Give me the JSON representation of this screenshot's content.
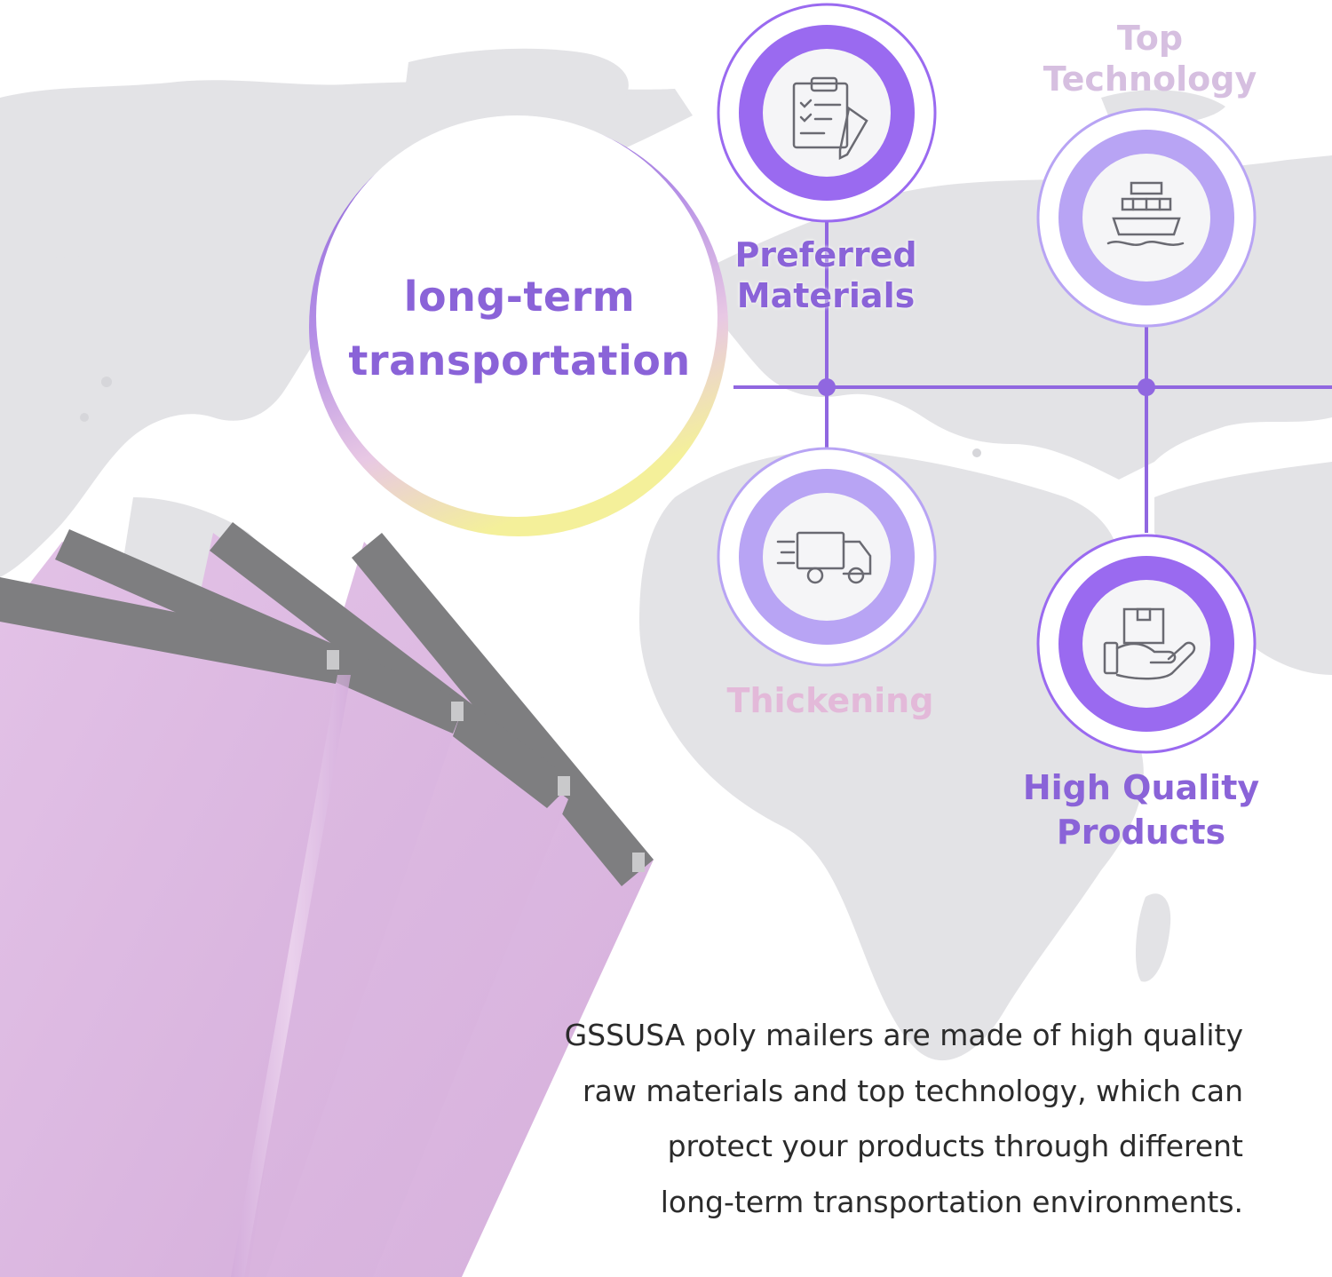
{
  "hero": {
    "line1": "long-term",
    "line2": "transportation"
  },
  "features": {
    "preferred": {
      "line1": "Preferred",
      "line2": "Materials",
      "icon": "clipboard-checklist-icon"
    },
    "top": {
      "line1": "Top",
      "line2": "Technology",
      "icon": "cargo-ship-icon"
    },
    "thickening": {
      "label": "Thickening",
      "icon": "delivery-truck-icon"
    },
    "high_quality": {
      "line1": "High Quality",
      "line2": "Products",
      "icon": "hand-package-icon"
    }
  },
  "description": {
    "line1": "GSSUSA poly mailers are made of high quality",
    "line2": "raw materials and top technology, which can",
    "line3": "protect your products through different",
    "line4": "long-term transportation environments."
  },
  "colors": {
    "accent": "#8a63d8",
    "ring_dark": "#9a6af0",
    "ring_light": "#b8a4f4",
    "mailer": "#dcb8e0",
    "map": "#e3e3e6"
  }
}
